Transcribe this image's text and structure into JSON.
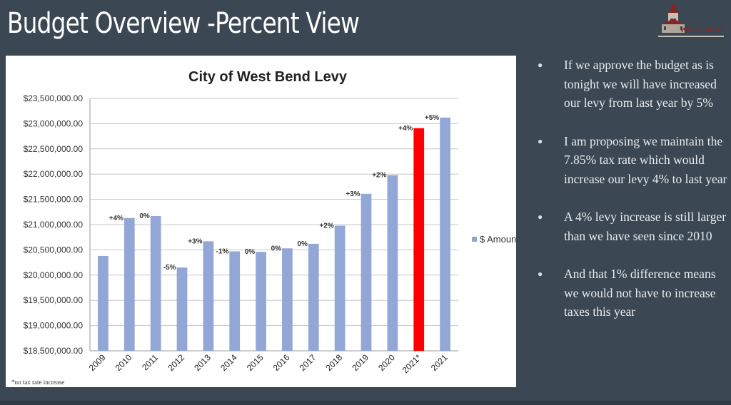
{
  "slide": {
    "title": "Budget Overview -Percent View",
    "logo_text": "WEST BEND",
    "footnote": "*no tax rate increase"
  },
  "bullets": [
    "If we approve the budget as is tonight we will have increased our levy from last year by 5%",
    "I am proposing we maintain the  7.85% tax rate which would increase our levy 4% to last year",
    "A 4% levy increase is still larger than we have seen since 2010",
    "And that 1% difference means we would not have to increase taxes this year"
  ],
  "colors": {
    "background": "#3b4752",
    "bar": "#93a7d7",
    "highlight_bar": "#ff0000"
  },
  "chart_data": {
    "type": "bar",
    "title": "City of West Bend Levy",
    "xlabel": "",
    "ylabel": "",
    "legend": {
      "position": "right",
      "label": "$ Amount"
    },
    "grid": true,
    "ylim": [
      18500000,
      23500000
    ],
    "yticks": [
      18500000,
      19000000,
      19500000,
      20000000,
      20500000,
      21000000,
      21500000,
      22000000,
      22500000,
      23000000,
      23500000
    ],
    "ytick_labels": [
      "$18,500,000.00",
      "$19,000,000.00",
      "$19,500,000.00",
      "$20,000,000.00",
      "$20,500,000.00",
      "$21,000,000.00",
      "$21,500,000.00",
      "$22,000,000.00",
      "$22,500,000.00",
      "$23,000,000.00",
      "$23,500,000.00"
    ],
    "categories": [
      "2009",
      "2010",
      "2011",
      "2012",
      "2013",
      "2014",
      "2015",
      "2016",
      "2017",
      "2018",
      "2019",
      "2020",
      "2021*",
      "2021"
    ],
    "series": [
      {
        "name": "$ Amount",
        "values": [
          20380000,
          21130000,
          21170000,
          20150000,
          20670000,
          20470000,
          20460000,
          20530000,
          20620000,
          20980000,
          21610000,
          21980000,
          22910000,
          23120000
        ]
      }
    ],
    "data_labels": [
      "",
      "+4%",
      "0%",
      "-5%",
      "+3%",
      "-1%",
      "0%",
      "0%",
      "0%",
      "+2%",
      "+3%",
      "+2%",
      "+4%",
      "+5%"
    ],
    "highlight_index": 12
  }
}
